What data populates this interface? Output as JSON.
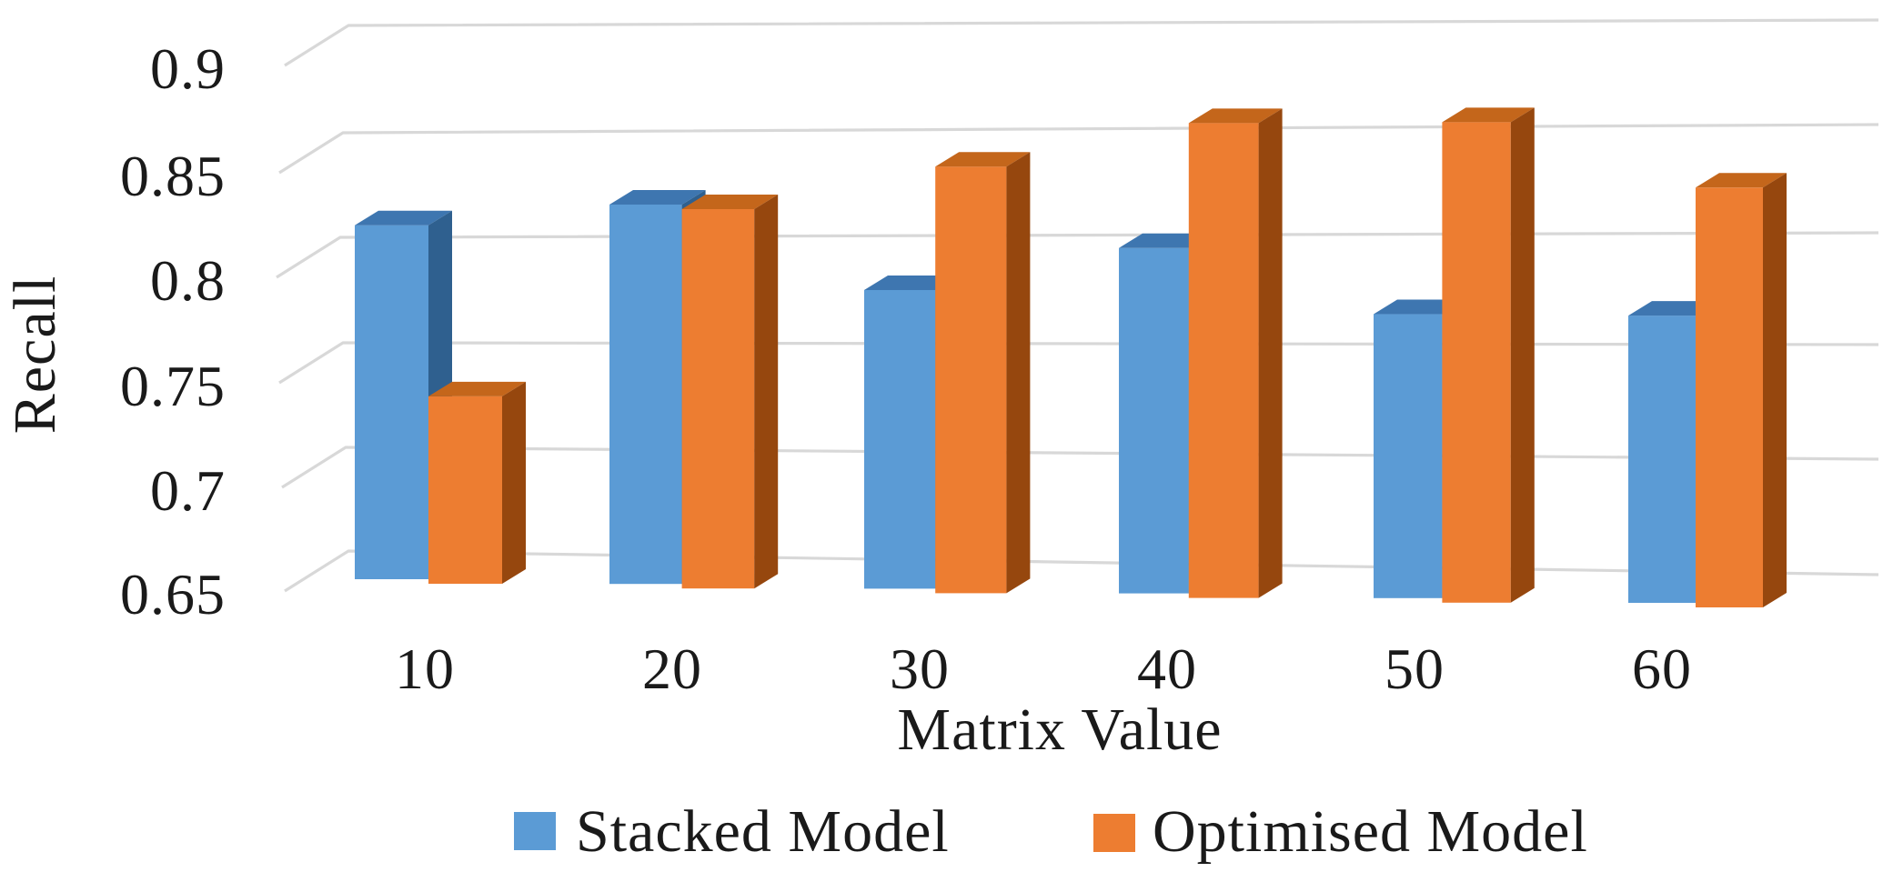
{
  "chart_data": {
    "type": "bar",
    "variant": "3d-clustered-column",
    "title": "",
    "xlabel": "Matrix Value",
    "ylabel": "Recall",
    "categories": [
      "10",
      "20",
      "30",
      "40",
      "50",
      "60"
    ],
    "series": [
      {
        "name": "Stacked Model",
        "color": "#5B9BD5",
        "values": [
          0.82,
          0.83,
          0.79,
          0.81,
          0.78,
          0.78
        ]
      },
      {
        "name": "Optimised Model",
        "color": "#ED7D31",
        "values": [
          0.74,
          0.83,
          0.85,
          0.87,
          0.87,
          0.84
        ]
      }
    ],
    "ylim": [
      0.65,
      0.9
    ],
    "ytick_step": 0.05,
    "yticks": [
      "0.9",
      "0.85",
      "0.8",
      "0.75",
      "0.7",
      "0.65"
    ],
    "grid": true,
    "legend_position": "bottom"
  },
  "colors": {
    "stacked_front": "#5B9BD5",
    "stacked_top": "#3E76B0",
    "stacked_side": "#2F608F",
    "optimised_front": "#ED7D31",
    "optimised_top": "#C4661B",
    "optimised_side": "#96470E",
    "gridline": "#D8D8D8",
    "text": "#1A1A1A",
    "background": "#FFFFFF"
  }
}
